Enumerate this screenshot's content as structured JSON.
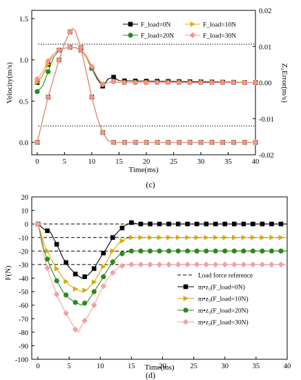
{
  "figure": {
    "label_c": "(c)",
    "label_d": "(d)"
  },
  "chart_data": [
    {
      "type": "line",
      "xlabel": "Time(ms)",
      "ylabel": "Velocity(m/s)",
      "ylabel2": "Z₂Error(m/s)",
      "xlim": [
        -1,
        40
      ],
      "ylim": [
        -0.15,
        1.6
      ],
      "ylim2": [
        -0.02,
        0.02
      ],
      "x_ticks": [
        0,
        5,
        10,
        15,
        20,
        25,
        30,
        35,
        40
      ],
      "y_ticks": [
        0.0,
        0.5,
        1.0,
        1.5
      ],
      "y2_ticks": [
        -0.02,
        -0.01,
        0.0,
        0.01,
        0.02
      ],
      "y2_tick_labels": [
        "-0.02",
        "-0.01",
        "0.00",
        "0.01",
        "0.02"
      ],
      "reference_lines": [
        1.19,
        0.2
      ],
      "legend_position": "top",
      "legend": [
        "F_load=0N",
        "F_load=10N",
        "F_load=20N",
        "F_load=30N"
      ],
      "colors": [
        "#000000",
        "#f5a300",
        "#1f8f1f",
        "#ff8f8f"
      ],
      "markers": [
        "square",
        "triangle-right",
        "circle",
        "diamond"
      ],
      "velocity_series": [
        {
          "name": "F_load=0N",
          "x": [
            0,
            2,
            4,
            5,
            6,
            6.5,
            7,
            8,
            9,
            10,
            11,
            12,
            13,
            14,
            40
          ],
          "y": [
            0.0,
            0.55,
            1.0,
            1.2,
            1.34,
            1.38,
            1.35,
            1.15,
            0.85,
            0.55,
            0.3,
            0.12,
            0.02,
            0.0,
            0.0
          ]
        },
        {
          "name": "F_load=10N",
          "x": [
            0,
            2,
            4,
            5,
            6,
            6.5,
            7,
            8,
            9,
            10,
            11,
            12,
            13,
            14,
            40
          ],
          "y": [
            0.0,
            0.55,
            1.0,
            1.2,
            1.34,
            1.38,
            1.35,
            1.15,
            0.85,
            0.55,
            0.3,
            0.12,
            0.02,
            0.0,
            0.0
          ]
        },
        {
          "name": "F_load=20N",
          "x": [
            0,
            2,
            4,
            5,
            6,
            6.5,
            7,
            8,
            9,
            10,
            11,
            12,
            13,
            14,
            40
          ],
          "y": [
            0.0,
            0.55,
            1.0,
            1.2,
            1.34,
            1.38,
            1.35,
            1.15,
            0.85,
            0.55,
            0.3,
            0.12,
            0.02,
            0.0,
            0.0
          ]
        },
        {
          "name": "F_load=30N",
          "x": [
            0,
            2,
            4,
            5,
            6,
            6.5,
            7,
            8,
            9,
            10,
            11,
            12,
            13,
            14,
            40
          ],
          "y": [
            0.0,
            0.55,
            1.0,
            1.2,
            1.34,
            1.38,
            1.35,
            1.15,
            0.85,
            0.55,
            0.3,
            0.12,
            0.02,
            0.0,
            0.0
          ]
        }
      ],
      "error_series": [
        {
          "name": "F_load=0N",
          "x": [
            0,
            1,
            2,
            3,
            4,
            5,
            6,
            7,
            8,
            9,
            10,
            11,
            12,
            13,
            14,
            15,
            40
          ],
          "y": [
            0.0,
            0.002,
            0.005,
            0.008,
            0.009,
            0.0095,
            0.0098,
            0.0097,
            0.009,
            0.007,
            0.004,
            0.001,
            -0.001,
            0.001,
            0.0015,
            0.0005,
            0.0
          ]
        },
        {
          "name": "F_load=10N",
          "x": [
            0,
            1,
            2,
            3,
            4,
            5,
            6,
            7,
            8,
            9,
            10,
            11,
            12,
            13,
            14,
            15,
            40
          ],
          "y": [
            0.0,
            0.002,
            0.005,
            0.008,
            0.009,
            0.0095,
            0.0098,
            0.0097,
            0.0092,
            0.0075,
            0.0045,
            0.0015,
            -0.0005,
            0.0,
            0.0005,
            0.0,
            0.0
          ]
        },
        {
          "name": "F_load=20N",
          "x": [
            0,
            1,
            2,
            3,
            4,
            5,
            6,
            7,
            8,
            9,
            10,
            11,
            12,
            13,
            14,
            15,
            40
          ],
          "y": [
            -0.0025,
            -0.001,
            0.003,
            0.007,
            0.009,
            0.0095,
            0.0098,
            0.0097,
            0.009,
            0.007,
            0.004,
            0.0015,
            -0.0005,
            0.0,
            0.0003,
            0.0,
            0.0
          ]
        },
        {
          "name": "F_load=30N",
          "x": [
            0,
            1,
            2,
            3,
            4,
            5,
            6,
            7,
            8,
            9,
            10,
            11,
            12,
            13,
            14,
            15,
            40
          ],
          "y": [
            0.001,
            0.003,
            0.006,
            0.008,
            0.009,
            0.0095,
            0.0098,
            0.0097,
            0.009,
            0.007,
            0.0045,
            0.0015,
            -0.0005,
            0.0,
            0.0003,
            0.0,
            0.0
          ]
        }
      ]
    },
    {
      "type": "line",
      "xlabel": "Time(ms)",
      "ylabel": "F(N)",
      "xlim": [
        -1,
        40
      ],
      "ylim": [
        -100,
        20
      ],
      "x_ticks": [
        0,
        5,
        10,
        15,
        20,
        25,
        30,
        35,
        40
      ],
      "y_ticks": [
        20,
        10,
        0,
        -10,
        -20,
        -30,
        -40,
        -50,
        -60,
        -70,
        -80,
        -90,
        -100
      ],
      "legend_position": "bottom-right",
      "legend": [
        "Load force reference",
        "m•z₃(F_load=0N)",
        "m•z₃(F_load=10N)",
        "m•z₃(F_load=20N)",
        "m•z₃(F_load=30N)"
      ],
      "reference_levels": [
        0,
        -10,
        -20,
        -30
      ],
      "colors": [
        "#000000",
        "#d6aa00",
        "#2a8a1a",
        "#f2a1a1"
      ],
      "markers": [
        "square",
        "triangle-right",
        "circle",
        "diamond"
      ],
      "series": [
        {
          "name": "F_load=0N",
          "x": [
            0,
            1,
            2,
            3,
            4,
            5,
            6,
            7,
            8,
            9,
            10,
            11,
            12,
            13,
            14,
            15,
            16,
            40
          ],
          "y": [
            0,
            -4,
            -6,
            -15,
            -25,
            -32,
            -37,
            -40,
            -38,
            -33,
            -25,
            -18,
            -10,
            -5,
            -1,
            1,
            0,
            0
          ]
        },
        {
          "name": "F_load=10N",
          "x": [
            0,
            1,
            2,
            3,
            4,
            5,
            6,
            7,
            8,
            9,
            10,
            11,
            12,
            13,
            14,
            15,
            16,
            40
          ],
          "y": [
            0,
            -15,
            -25,
            -33,
            -40,
            -45,
            -48,
            -50,
            -48,
            -43,
            -35,
            -28,
            -20,
            -14,
            -11,
            -10,
            -10,
            -10
          ]
        },
        {
          "name": "F_load=20N",
          "x": [
            0,
            1,
            2,
            3,
            4,
            5,
            6,
            7,
            8,
            9,
            10,
            11,
            12,
            13,
            14,
            15,
            16,
            40
          ],
          "y": [
            0,
            -20,
            -32,
            -42,
            -50,
            -55,
            -58,
            -60,
            -57,
            -50,
            -43,
            -35,
            -28,
            -23,
            -21,
            -20,
            -20,
            -20
          ]
        },
        {
          "name": "F_load=30N",
          "x": [
            0,
            1,
            2,
            3,
            4,
            5,
            6,
            6.5,
            7,
            8,
            9,
            10,
            11,
            12,
            13,
            14,
            15,
            40
          ],
          "y": [
            0,
            -25,
            -40,
            -52,
            -62,
            -70,
            -78,
            -80,
            -75,
            -68,
            -60,
            -50,
            -42,
            -36,
            -32,
            -30,
            -30,
            -30
          ]
        }
      ]
    }
  ]
}
